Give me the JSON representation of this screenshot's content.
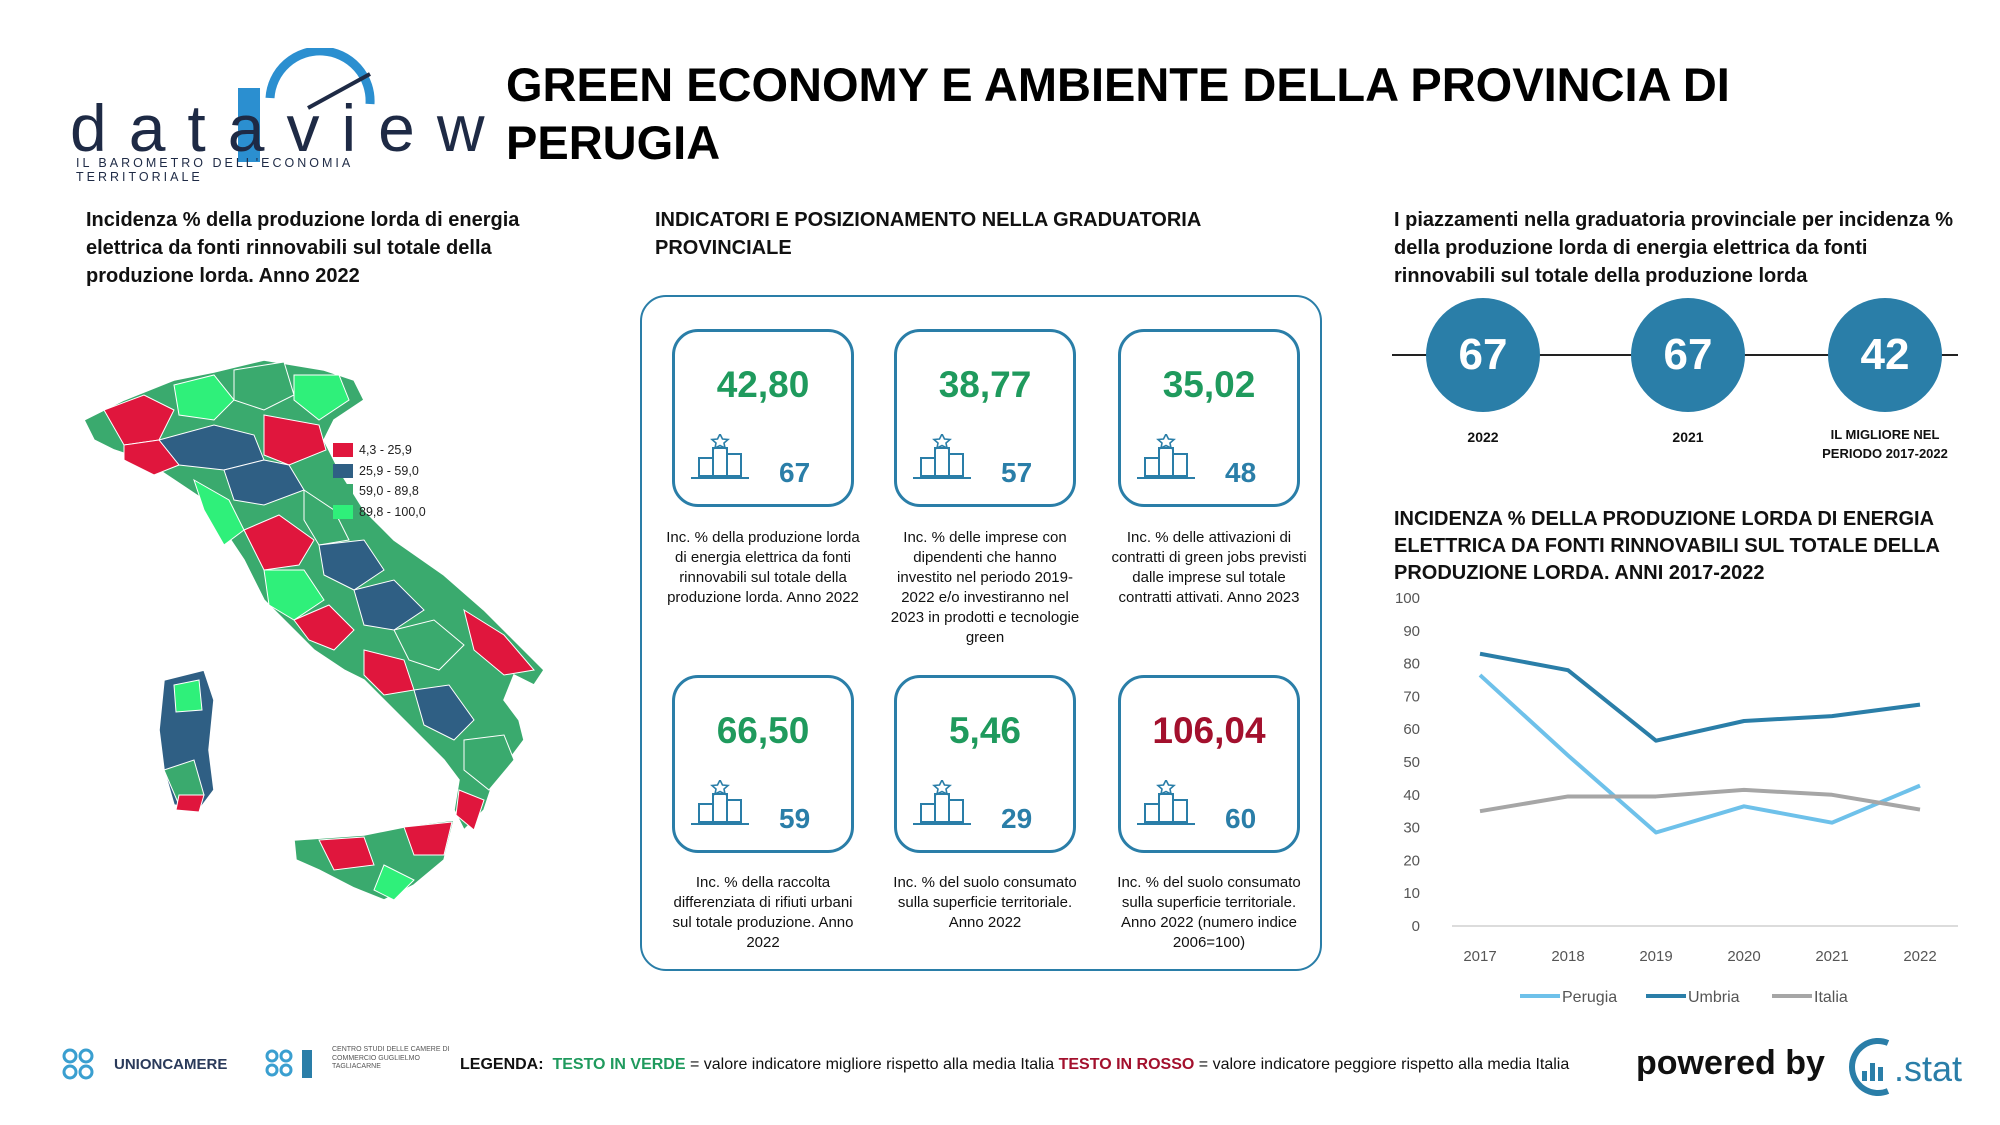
{
  "logo": {
    "word": "dataview",
    "tagline": "IL BAROMETRO DELL'ECONOMIA TERRITORIALE"
  },
  "title": "GREEN ECONOMY E AMBIENTE DELLA PROVINCIA DI PERUGIA",
  "map_section": {
    "title": "Incidenza % della produzione lorda di energia elettrica da fonti rinnovabili sul totale della produzione lorda. Anno 2022",
    "legend": [
      {
        "label": "4,3 - 25,9",
        "color": "#e0163d"
      },
      {
        "label": "25,9 - 59,0",
        "color": "#2f5f84"
      },
      {
        "label": "59,0 - 89,8",
        "color": "#3aaa6e"
      },
      {
        "label": "89,8 - 100,0",
        "color": "#2ff07a"
      }
    ]
  },
  "indicators": {
    "title": "INDICATORI E POSIZIONAMENTO NELLA GRADUATORIA PROVINCIALE",
    "items": [
      {
        "value": "42,80",
        "rank": "67",
        "status": "green",
        "desc": "Inc. % della produzione lorda di energia elettrica da fonti rinnovabili sul totale della produzione lorda. Anno 2022"
      },
      {
        "value": "38,77",
        "rank": "57",
        "status": "green",
        "desc": "Inc. % delle imprese con dipendenti che hanno investito nel periodo 2019-2022 e/o investiranno nel 2023 in prodotti e tecnologie green"
      },
      {
        "value": "35,02",
        "rank": "48",
        "status": "green",
        "desc": "Inc. % delle attivazioni di contratti di green jobs previsti dalle imprese sul totale contratti attivati. Anno 2023"
      },
      {
        "value": "66,50",
        "rank": "59",
        "status": "green",
        "desc": "Inc. % della raccolta differenziata di rifiuti urbani sul totale produzione. Anno 2022"
      },
      {
        "value": "5,46",
        "rank": "29",
        "status": "green",
        "desc": "Inc. % del suolo consumato sulla superficie territoriale. Anno 2022"
      },
      {
        "value": "106,04",
        "rank": "60",
        "status": "red",
        "desc": "Inc. % del suolo consumato sulla superficie territoriale. Anno 2022 (numero indice 2006=100)"
      }
    ]
  },
  "ranking": {
    "title": "I piazzamenti nella graduatoria provinciale per incidenza % della produzione lorda di energia elettrica da fonti rinnovabili sul totale della produzione lorda",
    "items": [
      {
        "value": "67",
        "label": "2022"
      },
      {
        "value": "67",
        "label": "2021"
      },
      {
        "value": "42",
        "label": "IL MIGLIORE NEL PERIODO 2017-2022"
      }
    ]
  },
  "chart_data": {
    "type": "line",
    "title": "INCIDENZA % DELLA PRODUZIONE LORDA DI ENERGIA ELETTRICA DA FONTI RINNOVABILI SUL TOTALE DELLA PRODUZIONE LORDA. ANNI 2017-2022",
    "categories": [
      "2017",
      "2018",
      "2019",
      "2020",
      "2021",
      "2022"
    ],
    "ylim": [
      0,
      100
    ],
    "yticks": [
      0,
      10,
      20,
      30,
      40,
      50,
      60,
      70,
      80,
      90,
      100
    ],
    "grid": false,
    "legend_position": "bottom",
    "series": [
      {
        "name": "Perugia",
        "color": "#6ec1ea",
        "values": [
          76.5,
          52.0,
          28.5,
          36.5,
          31.5,
          42.8
        ]
      },
      {
        "name": "Umbria",
        "color": "#2a7ea8",
        "values": [
          83.0,
          78.0,
          56.5,
          62.5,
          64.0,
          67.5
        ]
      },
      {
        "name": "Italia",
        "color": "#a6a6a6",
        "values": [
          35.0,
          39.5,
          39.5,
          41.5,
          40.0,
          35.5
        ]
      }
    ]
  },
  "footer": {
    "unioncamere": "UNIONCAMERE",
    "centro": "CENTRO STUDI DELLE CAMERE DI COMMERCIO GUGLIELMO TAGLIACARNE",
    "legenda_label": "LEGENDA:",
    "green_text": "TESTO IN VERDE",
    "green_desc": "= valore indicatore migliore rispetto alla media Italia",
    "red_text": "TESTO IN ROSSO",
    "red_desc": "= valore indicatore peggiore rispetto alla media Italia",
    "powered": "powered by",
    "cstat": ".stat"
  },
  "colors": {
    "accent": "#2a7ea8",
    "good": "#1f9a5d",
    "bad": "#a3102d"
  }
}
